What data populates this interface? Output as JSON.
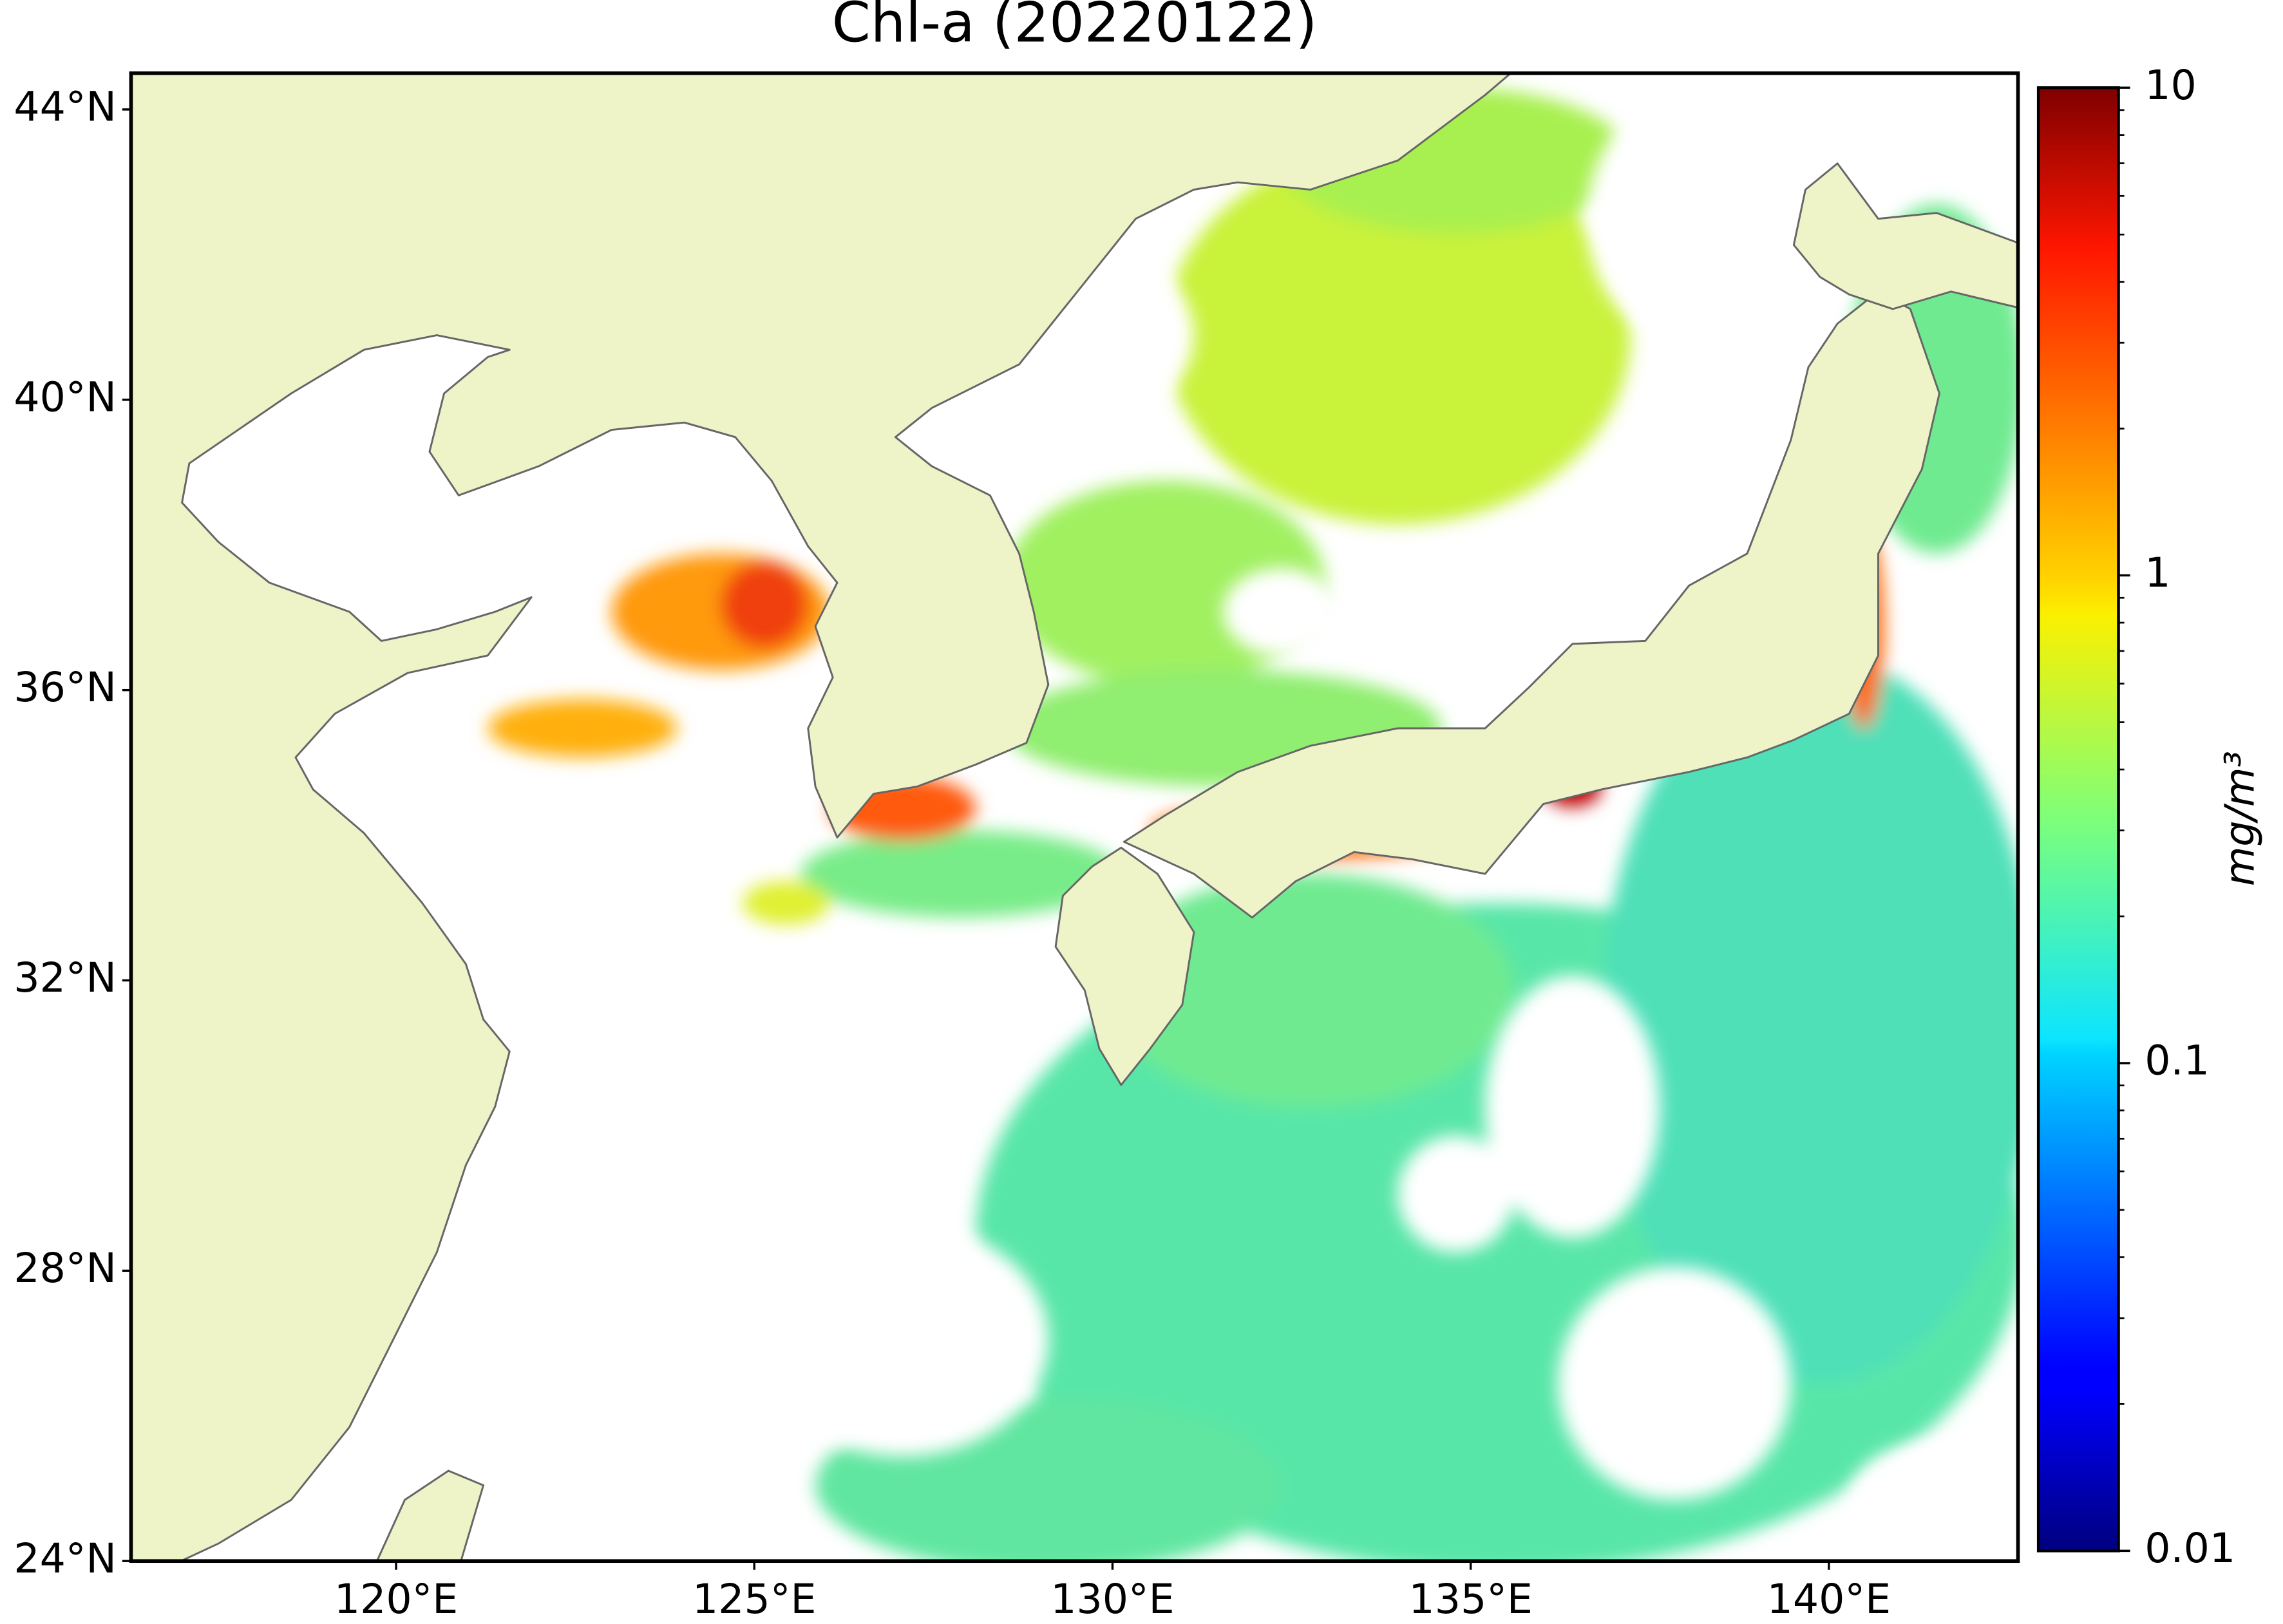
{
  "chart_data": {
    "type": "map",
    "title": "Chl-a (20220122)",
    "xlim": [
      116.3,
      142.64
    ],
    "ylim": [
      24,
      44.5
    ],
    "xticks": [
      {
        "value": 120,
        "label": "120°E"
      },
      {
        "value": 125,
        "label": "125°E"
      },
      {
        "value": 130,
        "label": "130°E"
      },
      {
        "value": 135,
        "label": "135°E"
      },
      {
        "value": 140,
        "label": "140°E"
      }
    ],
    "yticks": [
      {
        "value": 24,
        "label": "24°N"
      },
      {
        "value": 28,
        "label": "28°N"
      },
      {
        "value": 32,
        "label": "32°N"
      },
      {
        "value": 36,
        "label": "36°N"
      },
      {
        "value": 40,
        "label": "40°N"
      },
      {
        "value": 44,
        "label": "44°N"
      }
    ],
    "land_color": "#eff3c8",
    "colorbar": {
      "label": "mg/m³",
      "lim": [
        0.01,
        10
      ],
      "log": true,
      "colormap": "jet",
      "ticks": [
        0.01,
        0.1,
        1,
        10
      ],
      "minor_ticks": [
        0.02,
        0.03,
        0.04,
        0.05,
        0.06,
        0.07,
        0.08,
        0.09,
        0.2,
        0.3,
        0.4,
        0.5,
        0.6,
        0.7,
        0.8,
        0.9,
        2,
        3,
        4,
        5,
        6,
        7,
        8,
        9
      ]
    }
  }
}
